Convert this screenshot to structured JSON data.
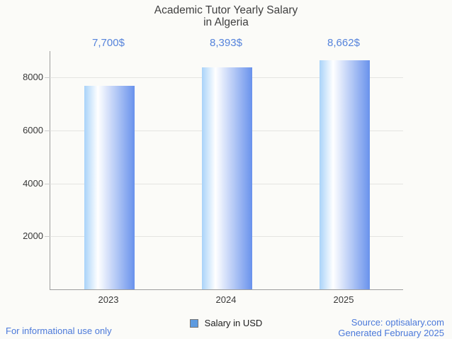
{
  "chart_data": {
    "type": "bar",
    "title": "Academic Tutor Yearly Salary\nin Algeria",
    "categories": [
      "2023",
      "2024",
      "2025"
    ],
    "series": [
      {
        "name": "Salary in USD",
        "values": [
          7700,
          8393,
          8662
        ]
      }
    ],
    "value_labels": [
      "7,700$",
      "8,393$",
      "8,662$"
    ],
    "xlabel": "",
    "ylabel": "",
    "ylim": [
      0,
      9000
    ],
    "yticks": [
      2000,
      4000,
      6000,
      8000
    ],
    "grid": true,
    "legend_position": "bottom"
  },
  "legend": {
    "label": "Salary in USD"
  },
  "footer": {
    "left": "For informational use only",
    "source": "Source: optisalary.com",
    "generated": "Generated February 2025"
  },
  "colors": {
    "background": "#fbfbf8",
    "title_gray": "#3f3f3f",
    "axis_label_gray": "#383838",
    "axis_line_gray": "#9e9e9e",
    "grid_gray": "#e4e4e2",
    "tick_gray": "#cbcbcb",
    "bar_gradient_left": "#a9d3f9",
    "bar_gradient_mid": "#ffffff",
    "bar_gradient_right": "#6992ec",
    "annotation_blue": "#5583db",
    "footer_blue": "#4b79da",
    "legend_swatch": "#5e9be0",
    "legend_swatch_border": "#757575"
  }
}
